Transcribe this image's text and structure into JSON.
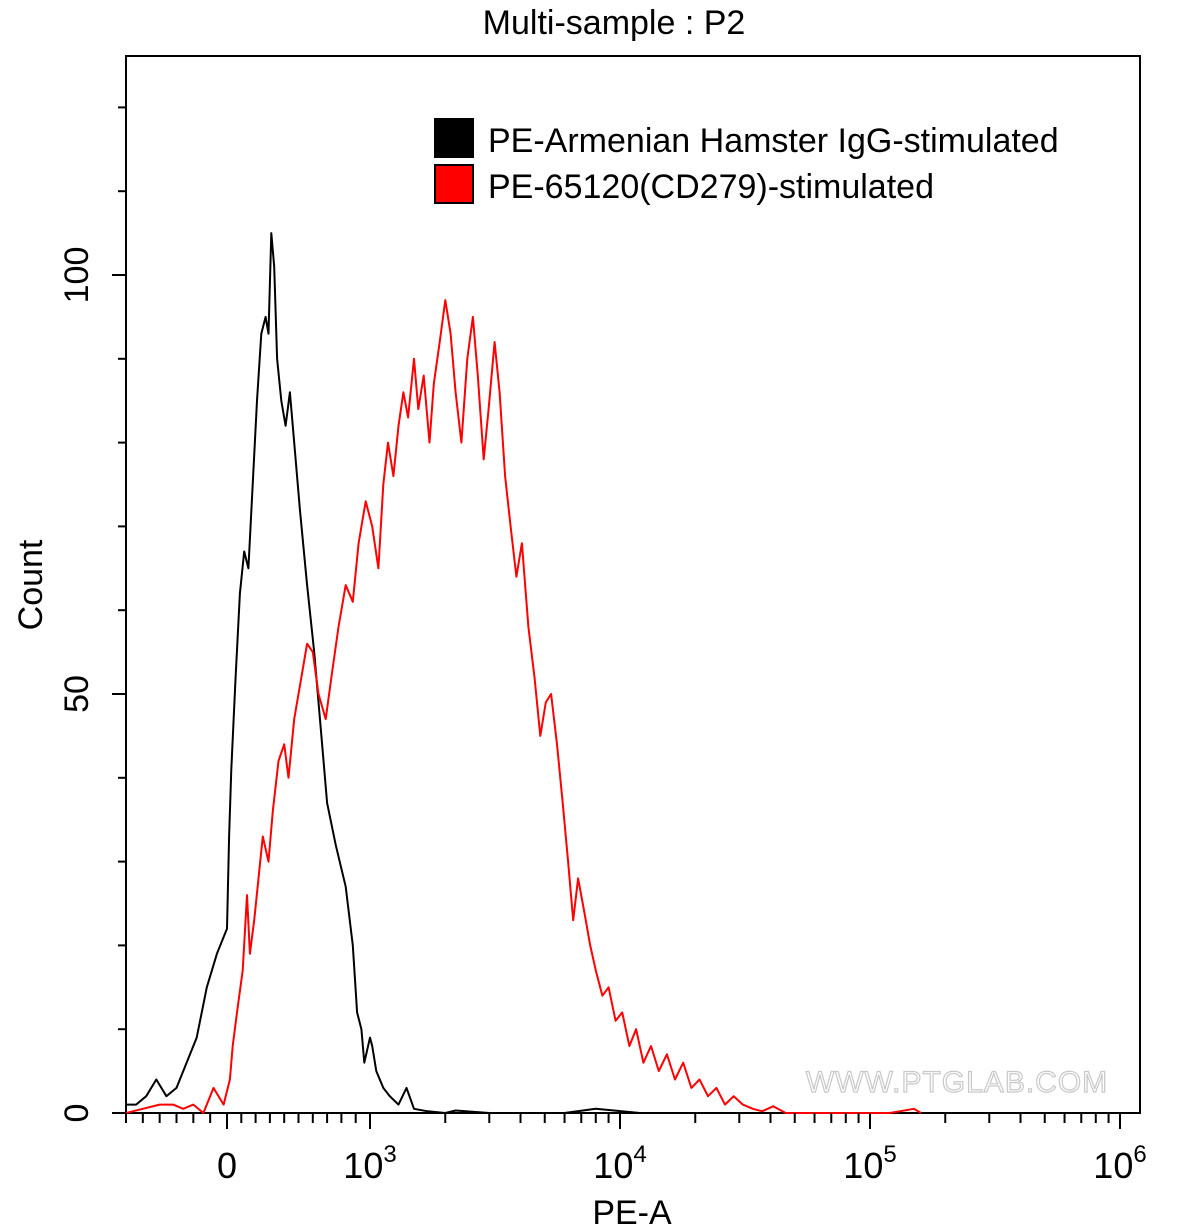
{
  "chart_data": {
    "type": "line",
    "title": "Multi-sample : P2",
    "xlabel": "PE-A",
    "ylabel": "Count",
    "x_scale": "biexponential",
    "xlim": [
      -300,
      1000000
    ],
    "ylim": [
      0,
      125
    ],
    "y_ticks": [
      {
        "value": 0,
        "label": "0"
      },
      {
        "value": 50,
        "label": "50"
      },
      {
        "value": 100,
        "label": "100"
      }
    ],
    "x_ticks": [
      {
        "value": 0,
        "base": "0",
        "exp": ""
      },
      {
        "value": 1000,
        "base": "10",
        "exp": "3"
      },
      {
        "value": 10000,
        "base": "10",
        "exp": "4"
      },
      {
        "value": 100000,
        "base": "10",
        "exp": "5"
      },
      {
        "value": 1000000,
        "base": "10",
        "exp": "6"
      }
    ],
    "legend_position": "top-right",
    "grid": false,
    "watermark": "WWW.PTGLAB.COM",
    "series": [
      {
        "name": "PE-Armenian Hamster IgG-stimulated",
        "color": "#000000",
        "points": [
          [
            -300,
            1
          ],
          [
            -270,
            1
          ],
          [
            -240,
            2
          ],
          [
            -210,
            4
          ],
          [
            -180,
            2
          ],
          [
            -150,
            3
          ],
          [
            -120,
            6
          ],
          [
            -90,
            9
          ],
          [
            -60,
            15
          ],
          [
            -30,
            19
          ],
          [
            0,
            22
          ],
          [
            15,
            33
          ],
          [
            30,
            41
          ],
          [
            60,
            52
          ],
          [
            90,
            62
          ],
          [
            120,
            67
          ],
          [
            150,
            65
          ],
          [
            180,
            75
          ],
          [
            210,
            85
          ],
          [
            240,
            93
          ],
          [
            270,
            95
          ],
          [
            290,
            93
          ],
          [
            300,
            99
          ],
          [
            310,
            105
          ],
          [
            330,
            101
          ],
          [
            350,
            90
          ],
          [
            380,
            85
          ],
          [
            410,
            82
          ],
          [
            440,
            86
          ],
          [
            470,
            80
          ],
          [
            510,
            72
          ],
          [
            560,
            63
          ],
          [
            610,
            55
          ],
          [
            660,
            45
          ],
          [
            700,
            37
          ],
          [
            760,
            32
          ],
          [
            830,
            27
          ],
          [
            880,
            20
          ],
          [
            910,
            12
          ],
          [
            940,
            10
          ],
          [
            960,
            6
          ],
          [
            1000,
            9
          ],
          [
            1020,
            8
          ],
          [
            1060,
            5
          ],
          [
            1130,
            3
          ],
          [
            1200,
            2
          ],
          [
            1300,
            1
          ],
          [
            1400,
            3
          ],
          [
            1500,
            0.5
          ],
          [
            1700,
            0.2
          ],
          [
            2000,
            0
          ],
          [
            2200,
            0.3
          ],
          [
            3000,
            0
          ],
          [
            6000,
            0
          ],
          [
            8000,
            0.5
          ],
          [
            12000,
            0
          ]
        ]
      },
      {
        "name": "PE-65120(CD279)-stimulated",
        "color": "#ff0000",
        "points": [
          [
            -300,
            0
          ],
          [
            -250,
            0.5
          ],
          [
            -200,
            1
          ],
          [
            -160,
            1
          ],
          [
            -130,
            0.5
          ],
          [
            -100,
            1
          ],
          [
            -70,
            0
          ],
          [
            -40,
            3
          ],
          [
            -10,
            1
          ],
          [
            20,
            4
          ],
          [
            40,
            8
          ],
          [
            70,
            12
          ],
          [
            110,
            17
          ],
          [
            140,
            26
          ],
          [
            160,
            19
          ],
          [
            190,
            23
          ],
          [
            220,
            28
          ],
          [
            250,
            33
          ],
          [
            290,
            30
          ],
          [
            320,
            36
          ],
          [
            360,
            42
          ],
          [
            400,
            44
          ],
          [
            430,
            40
          ],
          [
            470,
            47
          ],
          [
            520,
            52
          ],
          [
            560,
            56
          ],
          [
            600,
            55
          ],
          [
            640,
            50
          ],
          [
            690,
            47
          ],
          [
            730,
            52
          ],
          [
            780,
            58
          ],
          [
            830,
            63
          ],
          [
            880,
            61
          ],
          [
            920,
            68
          ],
          [
            970,
            73
          ],
          [
            1020,
            70
          ],
          [
            1080,
            65
          ],
          [
            1130,
            75
          ],
          [
            1180,
            80
          ],
          [
            1240,
            76
          ],
          [
            1300,
            82
          ],
          [
            1360,
            86
          ],
          [
            1420,
            83
          ],
          [
            1500,
            90
          ],
          [
            1560,
            84
          ],
          [
            1640,
            88
          ],
          [
            1730,
            80
          ],
          [
            1800,
            87
          ],
          [
            1900,
            92
          ],
          [
            2000,
            97
          ],
          [
            2100,
            93
          ],
          [
            2200,
            86
          ],
          [
            2320,
            80
          ],
          [
            2450,
            90
          ],
          [
            2580,
            95
          ],
          [
            2700,
            88
          ],
          [
            2850,
            78
          ],
          [
            2980,
            84
          ],
          [
            3150,
            92
          ],
          [
            3300,
            86
          ],
          [
            3470,
            76
          ],
          [
            3650,
            70
          ],
          [
            3850,
            64
          ],
          [
            4050,
            68
          ],
          [
            4300,
            58
          ],
          [
            4550,
            52
          ],
          [
            4800,
            45
          ],
          [
            5050,
            49
          ],
          [
            5300,
            50
          ],
          [
            5600,
            44
          ],
          [
            5900,
            37
          ],
          [
            6200,
            30
          ],
          [
            6500,
            23
          ],
          [
            6800,
            28
          ],
          [
            7200,
            24
          ],
          [
            7600,
            20
          ],
          [
            8000,
            17
          ],
          [
            8500,
            14
          ],
          [
            9000,
            15
          ],
          [
            9600,
            11
          ],
          [
            10200,
            12
          ],
          [
            10900,
            8
          ],
          [
            11600,
            10
          ],
          [
            12400,
            6
          ],
          [
            13300,
            8
          ],
          [
            14300,
            5
          ],
          [
            15400,
            7
          ],
          [
            16600,
            4
          ],
          [
            17900,
            6
          ],
          [
            19300,
            3
          ],
          [
            20800,
            4
          ],
          [
            22500,
            2
          ],
          [
            24300,
            3
          ],
          [
            26300,
            1
          ],
          [
            28500,
            2
          ],
          [
            31000,
            1
          ],
          [
            34000,
            0.5
          ],
          [
            37000,
            0.2
          ],
          [
            41000,
            0.8
          ],
          [
            46000,
            0
          ],
          [
            80000,
            0
          ],
          [
            120000,
            0
          ],
          [
            150000,
            0.5
          ],
          [
            160000,
            0
          ]
        ]
      }
    ]
  }
}
